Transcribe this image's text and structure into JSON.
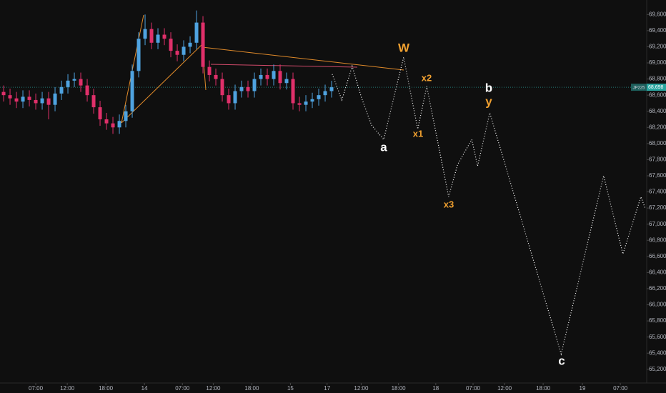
{
  "chart_data": {
    "type": "candlestick",
    "symbol": "JP225",
    "last_price": {
      "value": 68698,
      "label": "68,698"
    },
    "up_color": "#4fa3e0",
    "down_color": "#e0306a",
    "last_price_color": "#2aa6a0",
    "x": [
      -5,
      -4,
      -3,
      -2,
      -1,
      0,
      1,
      2,
      3,
      4,
      5,
      6,
      7,
      8,
      9,
      10,
      11,
      12,
      13,
      14,
      15,
      16,
      17,
      18,
      19,
      20,
      21,
      22,
      23,
      24,
      25,
      26,
      27,
      28,
      29,
      30,
      31,
      32,
      33,
      34,
      35,
      36,
      37,
      38,
      39,
      40,
      41,
      42,
      43,
      44,
      45,
      46
    ],
    "open": [
      68640,
      68600,
      68560,
      68520,
      68580,
      68540,
      68500,
      68560,
      68480,
      68620,
      68700,
      68780,
      68800,
      68720,
      68600,
      68450,
      68300,
      68250,
      68200,
      68280,
      68400,
      68900,
      69300,
      69420,
      69250,
      69350,
      69300,
      69150,
      69100,
      69200,
      69250,
      69500,
      68950,
      68850,
      68800,
      68600,
      68500,
      68650,
      68700,
      68650,
      68800,
      68850,
      68800,
      68900,
      68750,
      68800,
      68500,
      68480,
      68520,
      68550,
      68600,
      68650
    ],
    "high": [
      68720,
      68680,
      68640,
      68660,
      68660,
      68620,
      68640,
      68640,
      68700,
      68780,
      68860,
      68880,
      68880,
      68800,
      68680,
      68530,
      68380,
      68330,
      68360,
      68480,
      68980,
      69380,
      69600,
      69500,
      69430,
      69430,
      69380,
      69230,
      69280,
      69330,
      69650,
      69580,
      69030,
      68930,
      68880,
      68680,
      68730,
      68780,
      68780,
      68880,
      68930,
      68930,
      68980,
      68980,
      68880,
      68880,
      68580,
      68600,
      68630,
      68680,
      68730,
      68778
    ],
    "low": [
      68520,
      68480,
      68440,
      68440,
      68460,
      68420,
      68420,
      68300,
      68400,
      68540,
      68620,
      68700,
      68640,
      68520,
      68370,
      68220,
      68170,
      68120,
      68120,
      68200,
      68320,
      68820,
      69220,
      69170,
      69170,
      69220,
      69070,
      69020,
      69020,
      69120,
      69170,
      68870,
      68770,
      68720,
      68520,
      68420,
      68420,
      68570,
      68570,
      68570,
      68720,
      68720,
      68720,
      68670,
      68670,
      68420,
      68400,
      68400,
      68440,
      68470,
      68520,
      68570
    ],
    "close": [
      68600,
      68560,
      68520,
      68580,
      68540,
      68500,
      68560,
      68480,
      68620,
      68700,
      68780,
      68800,
      68720,
      68600,
      68450,
      68300,
      68250,
      68200,
      68280,
      68400,
      68900,
      69300,
      69420,
      69250,
      69350,
      69300,
      69150,
      69100,
      69200,
      69250,
      69500,
      68950,
      68850,
      68800,
      68600,
      68500,
      68650,
      68700,
      68650,
      68800,
      68850,
      68800,
      68900,
      68750,
      68800,
      68500,
      68480,
      68520,
      68550,
      68600,
      68650,
      68698
    ],
    "projection": {
      "color": "#ffffff",
      "x": [
        46.1,
        47.6,
        49.2,
        50.6,
        52.2,
        54.1,
        57.2,
        59.4,
        60.8,
        64.2,
        65.6,
        67.8,
        68.7,
        70.6,
        81.7,
        88.3,
        91.3,
        94.1,
        94.8
      ],
      "values": [
        68860,
        68540,
        68960,
        68580,
        68230,
        68050,
        69070,
        68180,
        68710,
        67340,
        67740,
        68050,
        67720,
        68380,
        65390,
        67600,
        66630,
        67340,
        67190
      ]
    },
    "annotations": [
      {
        "text": "W",
        "color": "#f0a030"
      },
      {
        "text": "a",
        "color": "#ffffff"
      },
      {
        "text": "x1",
        "color": "#f0a030"
      },
      {
        "text": "x2",
        "color": "#f0a030"
      },
      {
        "text": "x3",
        "color": "#f0a030"
      },
      {
        "text": "b",
        "color": "#ffffff"
      },
      {
        "text": "y",
        "color": "#f0a030"
      },
      {
        "text": "c",
        "color": "#ffffff"
      }
    ],
    "xlim": [
      -5.56,
      95
    ],
    "ylim": [
      65030,
      69780
    ],
    "xticks": [
      {
        "value": 0,
        "label": "07:00"
      },
      {
        "value": 4.9,
        "label": "12:00"
      },
      {
        "value": 10.9,
        "label": "18:00"
      },
      16.9,
      {
        "value": 22.8,
        "label": "07:00"
      },
      {
        "value": 27.6,
        "label": "12:00"
      },
      {
        "value": 33.6,
        "label": "18:00"
      },
      39.6,
      45.3,
      {
        "value": 50.6,
        "label": "12:00"
      },
      {
        "value": 56.4,
        "label": "18:00"
      },
      62.2,
      {
        "value": 68,
        "label": "07:00"
      },
      {
        "value": 72.9,
        "label": "12:00"
      },
      {
        "value": 78.9,
        "label": "18:00"
      },
      85,
      {
        "value": 90.9,
        "label": "07:00"
      }
    ],
    "xtick_texts": [
      "07:00",
      "12:00",
      "18:00",
      "14",
      "07:00",
      "12:00",
      "18:00",
      "15",
      "17",
      "12:00",
      "18:00",
      "18",
      "07:00",
      "12:00",
      "18:00",
      "19",
      "07:00"
    ],
    "yticks": [
      {
        "value": 65200,
        "label": "65,200"
      },
      {
        "value": 65400,
        "label": "65,400"
      },
      {
        "value": 65600,
        "label": "65,600"
      },
      {
        "value": 65800,
        "label": "65,800"
      },
      {
        "value": 66000,
        "label": "66,000"
      },
      {
        "value": 66200,
        "label": "66,200"
      },
      {
        "value": 66400,
        "label": "66,400"
      },
      {
        "value": 66600,
        "label": "66,600"
      },
      {
        "value": 66800,
        "label": "66,800"
      },
      {
        "value": 67000,
        "label": "67,000"
      },
      {
        "value": 67200,
        "label": "67,200"
      },
      {
        "value": 67400,
        "label": "67,400"
      },
      {
        "value": 67600,
        "label": "67,600"
      },
      {
        "value": 67800,
        "label": "67,800"
      },
      {
        "value": 68000,
        "label": "68,000"
      },
      {
        "value": 68200,
        "label": "68,200"
      },
      {
        "value": 68400,
        "label": "68,400"
      },
      {
        "value": 68600,
        "label": "68,600"
      },
      {
        "value": 68800,
        "label": "68,800"
      },
      {
        "value": 69000,
        "label": "69,000"
      },
      {
        "value": 69200,
        "label": "69,200"
      },
      {
        "value": 69400,
        "label": "69,400"
      },
      {
        "value": 69600,
        "label": "69,600"
      }
    ]
  }
}
